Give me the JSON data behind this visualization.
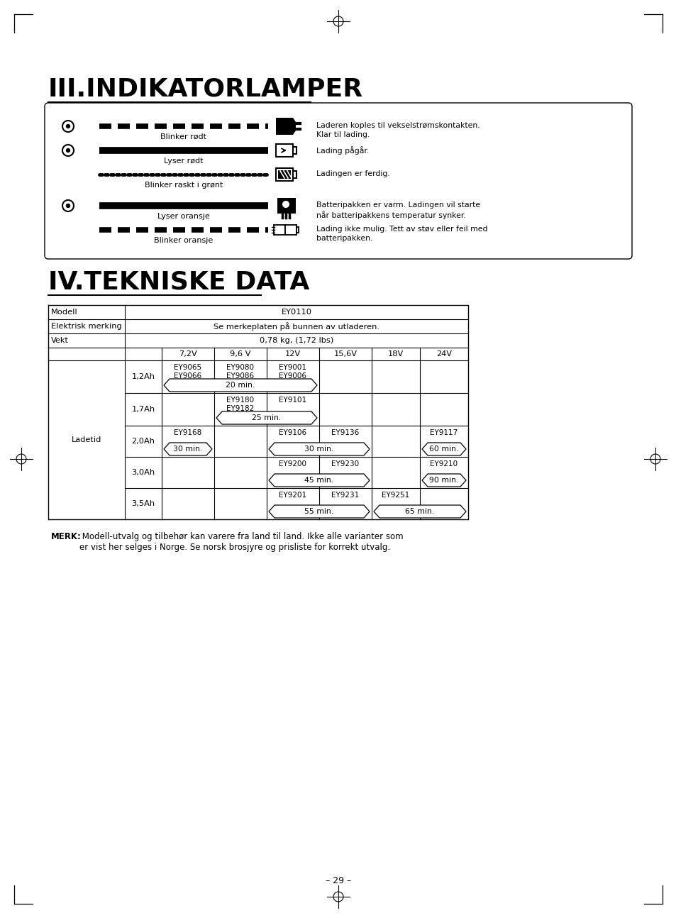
{
  "title_III": "III.INDIKATORLAMPER",
  "title_IV": "IV.TEKNISKE DATA",
  "bg_color": "#ffffff",
  "indicator_labels": [
    "Blinker rødt",
    "Lyser rødt",
    "Blinker raskt i grønt",
    "Lyser oransje",
    "Blinker oransje"
  ],
  "indicator_descriptions": [
    "Laderen koples til vekselstrømskontakten.\nKlar til lading.",
    "Lading pågår.",
    "Ladingen er ferdig.",
    "Batteripakken er varm. Ladingen vil starte\nnår batteripakkens temperatur synker.",
    "Lading ikke mulig. Tett av støv eller feil med\nbatteripakken."
  ],
  "table_title": "EY0110",
  "modell_label": "Modell",
  "elektrisk_label": "Elektrisk merking",
  "elektrisk_value": "Se merkeplaten på bunnen av utladeren.",
  "vekt_label": "Vekt",
  "vekt_value": "0,78 kg, (1,72 lbs)",
  "ladetid_label": "Ladetid",
  "voltage_headers": [
    "7,2V",
    "9,6 V",
    "12V",
    "15,6V",
    "18V",
    "24V"
  ],
  "note_bold": "MERK:",
  "note_line1": " Modell-utvalg og tilbehør kan varere fra land til land. Ikke alle varianter som",
  "note_line2": "er vist her selges i Norge. Se norsk brosjyre og prisliste for korrekt utvalg.",
  "page_number": "– 29 –"
}
